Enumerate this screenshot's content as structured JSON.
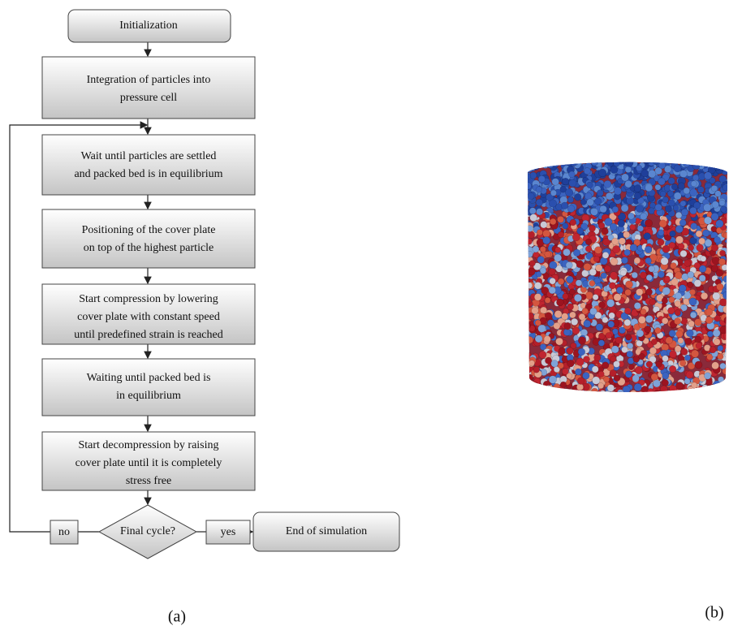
{
  "nodes": [
    {
      "lines": [
        "Initialization"
      ]
    },
    {
      "lines": [
        "Integration of particles into",
        "pressure cell"
      ]
    },
    {
      "lines": [
        "Wait until particles are settled",
        "and packed bed is in equilibrium"
      ]
    },
    {
      "lines": [
        "Positioning of the cover plate",
        "on top of the highest particle"
      ]
    },
    {
      "lines": [
        "Start compression by lowering",
        "cover plate with constant speed",
        "until predefined strain is reached"
      ]
    },
    {
      "lines": [
        "Waiting until packed bed is",
        "in equilibrium"
      ]
    },
    {
      "lines": [
        "Start decompression by raising",
        "cover plate until it is completely",
        "stress free"
      ]
    },
    {
      "lines": [
        "Final cycle?"
      ]
    },
    {
      "lines": [
        "End of simulation"
      ]
    }
  ],
  "edge_labels": {
    "no": "no",
    "yes": "yes"
  },
  "panel_labels": [
    "(a)",
    "(b)"
  ]
}
